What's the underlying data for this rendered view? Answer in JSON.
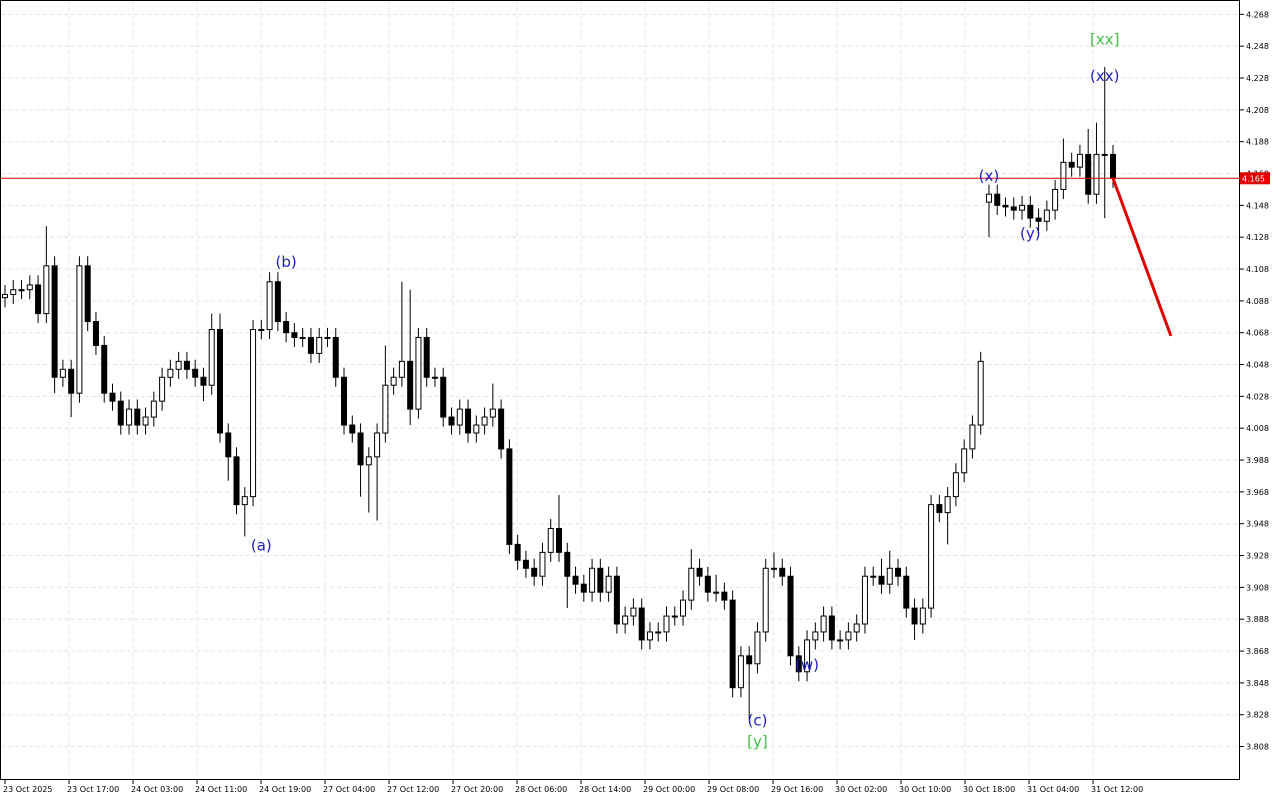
{
  "chart_data": {
    "type": "candlestick",
    "ylim": [
      3.787,
      4.277
    ],
    "yticks": [
      3.808,
      3.828,
      3.848,
      3.868,
      3.888,
      3.908,
      3.928,
      3.948,
      3.968,
      3.988,
      4.008,
      4.028,
      4.048,
      4.068,
      4.088,
      4.108,
      4.128,
      4.148,
      4.168,
      4.188,
      4.208,
      4.228,
      4.248,
      4.268
    ],
    "grid": true,
    "time_labels": [
      "23 Oct 2025",
      "23 Oct 17:00",
      "24 Oct 03:00",
      "24 Oct 11:00",
      "24 Oct 19:00",
      "27 Oct 04:00",
      "27 Oct 12:00",
      "27 Oct 20:00",
      "28 Oct 06:00",
      "28 Oct 14:00",
      "29 Oct 00:00",
      "29 Oct 08:00",
      "29 Oct 16:00",
      "30 Oct 02:00",
      "30 Oct 10:00",
      "30 Oct 18:00",
      "31 Oct 04:00",
      "31 Oct 12:00"
    ],
    "bull_color": "#ffffff",
    "bear_color": "#000000",
    "open": [
      4.09,
      4.092,
      4.095,
      4.095,
      4.098,
      4.08,
      4.11,
      4.04,
      4.045,
      4.03,
      4.11,
      4.075,
      4.06,
      4.03,
      4.025,
      4.01,
      4.02,
      4.01,
      4.015,
      4.025,
      4.04,
      4.045,
      4.05,
      4.045,
      4.04,
      4.035,
      4.07,
      4.005,
      3.99,
      3.96,
      3.965,
      4.07,
      4.07,
      4.1,
      4.075,
      4.068,
      4.065,
      4.065,
      4.055,
      4.065,
      4.065,
      4.04,
      4.01,
      4.005,
      3.985,
      3.99,
      4.005,
      4.035,
      4.04,
      4.05,
      4.02,
      4.065,
      4.04,
      4.04,
      4.015,
      4.01,
      4.02,
      4.005,
      4.01,
      4.015,
      4.02,
      3.995,
      3.935,
      3.925,
      3.92,
      3.915,
      3.93,
      3.945,
      3.93,
      3.915,
      3.91,
      3.905,
      3.92,
      3.905,
      3.915,
      3.885,
      3.89,
      3.895,
      3.875,
      3.88,
      3.88,
      3.89,
      3.89,
      3.9,
      3.92,
      3.915,
      3.905,
      3.905,
      3.9,
      3.845,
      3.865,
      3.86,
      3.88,
      3.92,
      3.92,
      3.915,
      3.865,
      3.855,
      3.875,
      3.88,
      3.89,
      3.875,
      3.875,
      3.88,
      3.885,
      3.915,
      3.915,
      3.91,
      3.92,
      3.915,
      3.895,
      3.885,
      3.895,
      3.96,
      3.955,
      3.965,
      3.98,
      3.995,
      4.01,
      4.15,
      4.155,
      4.148,
      4.147,
      4.145,
      4.148,
      4.14,
      4.138,
      4.145,
      4.158,
      4.175,
      4.172,
      4.18,
      4.155,
      4.18,
      4.18
    ],
    "high": [
      4.098,
      4.101,
      4.101,
      4.104,
      4.104,
      4.135,
      4.116,
      4.051,
      4.051,
      4.116,
      4.116,
      4.081,
      4.066,
      4.036,
      4.031,
      4.026,
      4.026,
      4.021,
      4.031,
      4.046,
      4.051,
      4.056,
      4.056,
      4.051,
      4.046,
      4.08,
      4.08,
      4.011,
      3.996,
      3.971,
      4.076,
      4.076,
      4.106,
      4.106,
      4.081,
      4.074,
      4.071,
      4.071,
      4.071,
      4.071,
      4.071,
      4.046,
      4.016,
      4.011,
      3.996,
      4.011,
      4.06,
      4.046,
      4.1,
      4.095,
      4.071,
      4.071,
      4.046,
      4.046,
      4.021,
      4.026,
      4.026,
      4.016,
      4.021,
      4.036,
      4.026,
      4.001,
      3.941,
      3.931,
      3.926,
      3.936,
      3.951,
      3.966,
      3.936,
      3.921,
      3.916,
      3.926,
      3.926,
      3.921,
      3.921,
      3.896,
      3.901,
      3.901,
      3.886,
      3.886,
      3.896,
      3.896,
      3.906,
      3.932,
      3.926,
      3.921,
      3.916,
      3.911,
      3.906,
      3.871,
      3.871,
      3.886,
      3.926,
      3.93,
      3.926,
      3.921,
      3.871,
      3.881,
      3.886,
      3.896,
      3.896,
      3.881,
      3.886,
      3.891,
      3.921,
      3.921,
      3.926,
      3.931,
      3.926,
      3.921,
      3.901,
      3.901,
      3.966,
      3.966,
      3.971,
      3.986,
      4.001,
      4.016,
      4.056,
      4.161,
      4.161,
      4.153,
      4.153,
      4.154,
      4.154,
      4.146,
      4.151,
      4.164,
      4.19,
      4.181,
      4.186,
      4.196,
      4.2,
      4.235,
      4.186
    ],
    "low": [
      4.084,
      4.086,
      4.089,
      4.089,
      4.074,
      4.074,
      4.03,
      4.034,
      4.015,
      4.024,
      4.069,
      4.054,
      4.024,
      4.019,
      4.004,
      4.004,
      4.004,
      4.004,
      4.009,
      4.019,
      4.034,
      4.039,
      4.039,
      4.034,
      4.025,
      4.029,
      3.999,
      3.975,
      3.954,
      3.94,
      3.959,
      4.064,
      4.064,
      4.069,
      4.062,
      4.059,
      4.059,
      4.049,
      4.049,
      4.059,
      4.034,
      4.004,
      3.999,
      3.965,
      3.955,
      3.95,
      3.999,
      4.029,
      4.034,
      4.01,
      4.014,
      4.034,
      4.034,
      4.009,
      4.004,
      4.004,
      3.999,
      3.999,
      4.004,
      4.009,
      3.989,
      3.929,
      3.919,
      3.914,
      3.909,
      3.909,
      3.924,
      3.924,
      3.895,
      3.904,
      3.899,
      3.899,
      3.899,
      3.899,
      3.879,
      3.879,
      3.884,
      3.869,
      3.869,
      3.874,
      3.874,
      3.884,
      3.884,
      3.894,
      3.909,
      3.899,
      3.899,
      3.894,
      3.839,
      3.839,
      3.825,
      3.854,
      3.874,
      3.914,
      3.909,
      3.859,
      3.849,
      3.849,
      3.869,
      3.874,
      3.869,
      3.869,
      3.869,
      3.874,
      3.879,
      3.909,
      3.904,
      3.904,
      3.909,
      3.889,
      3.875,
      3.879,
      3.889,
      3.949,
      3.935,
      3.959,
      3.974,
      3.989,
      4.004,
      4.128,
      4.142,
      4.141,
      4.139,
      4.139,
      4.134,
      4.132,
      4.132,
      4.139,
      4.152,
      4.166,
      4.166,
      4.149,
      4.149,
      4.14,
      4.159
    ],
    "close": [
      4.092,
      4.095,
      4.095,
      4.098,
      4.08,
      4.11,
      4.04,
      4.045,
      4.03,
      4.11,
      4.075,
      4.06,
      4.03,
      4.025,
      4.01,
      4.02,
      4.01,
      4.015,
      4.025,
      4.04,
      4.045,
      4.05,
      4.045,
      4.04,
      4.035,
      4.07,
      4.005,
      3.99,
      3.96,
      3.965,
      4.07,
      4.07,
      4.1,
      4.075,
      4.068,
      4.065,
      4.065,
      4.055,
      4.065,
      4.065,
      4.04,
      4.01,
      4.005,
      3.985,
      3.99,
      4.005,
      4.035,
      4.04,
      4.05,
      4.02,
      4.065,
      4.04,
      4.04,
      4.015,
      4.01,
      4.02,
      4.005,
      4.01,
      4.015,
      4.02,
      3.995,
      3.935,
      3.925,
      3.92,
      3.915,
      3.93,
      3.945,
      3.93,
      3.915,
      3.91,
      3.905,
      3.92,
      3.905,
      3.915,
      3.885,
      3.89,
      3.895,
      3.875,
      3.88,
      3.88,
      3.89,
      3.89,
      3.9,
      3.92,
      3.915,
      3.905,
      3.905,
      3.9,
      3.845,
      3.865,
      3.86,
      3.88,
      3.92,
      3.92,
      3.915,
      3.865,
      3.855,
      3.875,
      3.88,
      3.89,
      3.875,
      3.875,
      3.88,
      3.885,
      3.915,
      3.915,
      3.91,
      3.92,
      3.915,
      3.895,
      3.885,
      3.895,
      3.96,
      3.955,
      3.965,
      3.98,
      3.995,
      4.01,
      4.05,
      4.155,
      4.148,
      4.147,
      4.145,
      4.148,
      4.14,
      4.138,
      4.145,
      4.158,
      4.175,
      4.172,
      4.18,
      4.155,
      4.18,
      4.18,
      4.165
    ],
    "current_price": {
      "value": 4.165,
      "label": "4.165",
      "color": "#e00000"
    },
    "forecast_line": {
      "from": 4.165,
      "to": 4.066,
      "to_index": 141,
      "color": "#e00000"
    },
    "wave_labels": [
      {
        "text": "(a)",
        "index": 31,
        "price": 3.934,
        "color": "#2020c0"
      },
      {
        "text": "(b)",
        "index": 34,
        "price": 4.112,
        "color": "#2020c0"
      },
      {
        "text": "(c)",
        "index": 91,
        "price": 3.824,
        "color": "#2020c0"
      },
      {
        "text": "[y]",
        "index": 91,
        "price": 3.811,
        "color": "#40c040"
      },
      {
        "text": "(w)",
        "index": 97,
        "price": 3.859,
        "color": "#2020c0"
      },
      {
        "text": "(x)",
        "index": 119,
        "price": 4.166,
        "color": "#2020c0"
      },
      {
        "text": "(y)",
        "index": 124,
        "price": 4.13,
        "color": "#2020c0"
      },
      {
        "text": "(xx)",
        "index": 133,
        "price": 4.229,
        "color": "#2020c0"
      },
      {
        "text": "[xx]",
        "index": 133,
        "price": 4.252,
        "color": "#40c040"
      }
    ]
  }
}
